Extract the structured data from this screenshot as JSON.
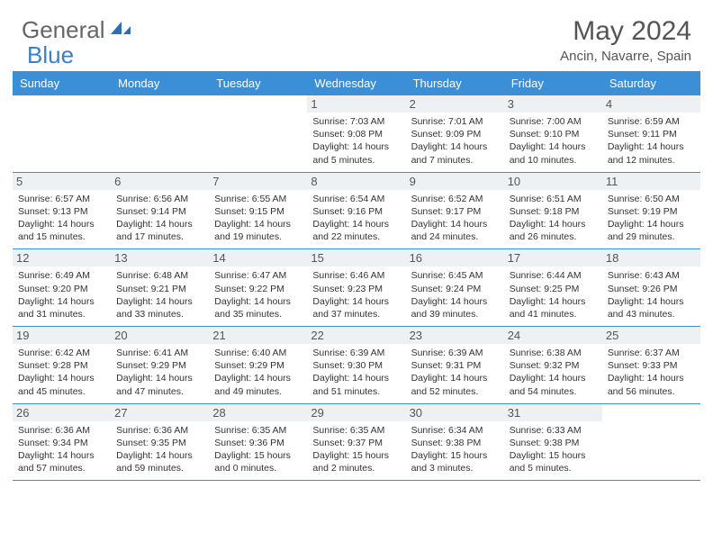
{
  "logo": {
    "t1": "General",
    "t2": "Blue"
  },
  "title": "May 2024",
  "location": "Ancin, Navarre, Spain",
  "colors": {
    "header": "#3b8fd6",
    "line": "#3b8fd6",
    "daynum_bg": "#eef1f3"
  },
  "daynames": [
    "Sunday",
    "Monday",
    "Tuesday",
    "Wednesday",
    "Thursday",
    "Friday",
    "Saturday"
  ],
  "weeks": [
    [
      null,
      null,
      null,
      {
        "n": "1",
        "r": "7:03 AM",
        "s": "9:08 PM",
        "d": "14 hours and 5 minutes."
      },
      {
        "n": "2",
        "r": "7:01 AM",
        "s": "9:09 PM",
        "d": "14 hours and 7 minutes."
      },
      {
        "n": "3",
        "r": "7:00 AM",
        "s": "9:10 PM",
        "d": "14 hours and 10 minutes."
      },
      {
        "n": "4",
        "r": "6:59 AM",
        "s": "9:11 PM",
        "d": "14 hours and 12 minutes."
      }
    ],
    [
      {
        "n": "5",
        "r": "6:57 AM",
        "s": "9:13 PM",
        "d": "14 hours and 15 minutes."
      },
      {
        "n": "6",
        "r": "6:56 AM",
        "s": "9:14 PM",
        "d": "14 hours and 17 minutes."
      },
      {
        "n": "7",
        "r": "6:55 AM",
        "s": "9:15 PM",
        "d": "14 hours and 19 minutes."
      },
      {
        "n": "8",
        "r": "6:54 AM",
        "s": "9:16 PM",
        "d": "14 hours and 22 minutes."
      },
      {
        "n": "9",
        "r": "6:52 AM",
        "s": "9:17 PM",
        "d": "14 hours and 24 minutes."
      },
      {
        "n": "10",
        "r": "6:51 AM",
        "s": "9:18 PM",
        "d": "14 hours and 26 minutes."
      },
      {
        "n": "11",
        "r": "6:50 AM",
        "s": "9:19 PM",
        "d": "14 hours and 29 minutes."
      }
    ],
    [
      {
        "n": "12",
        "r": "6:49 AM",
        "s": "9:20 PM",
        "d": "14 hours and 31 minutes."
      },
      {
        "n": "13",
        "r": "6:48 AM",
        "s": "9:21 PM",
        "d": "14 hours and 33 minutes."
      },
      {
        "n": "14",
        "r": "6:47 AM",
        "s": "9:22 PM",
        "d": "14 hours and 35 minutes."
      },
      {
        "n": "15",
        "r": "6:46 AM",
        "s": "9:23 PM",
        "d": "14 hours and 37 minutes."
      },
      {
        "n": "16",
        "r": "6:45 AM",
        "s": "9:24 PM",
        "d": "14 hours and 39 minutes."
      },
      {
        "n": "17",
        "r": "6:44 AM",
        "s": "9:25 PM",
        "d": "14 hours and 41 minutes."
      },
      {
        "n": "18",
        "r": "6:43 AM",
        "s": "9:26 PM",
        "d": "14 hours and 43 minutes."
      }
    ],
    [
      {
        "n": "19",
        "r": "6:42 AM",
        "s": "9:28 PM",
        "d": "14 hours and 45 minutes."
      },
      {
        "n": "20",
        "r": "6:41 AM",
        "s": "9:29 PM",
        "d": "14 hours and 47 minutes."
      },
      {
        "n": "21",
        "r": "6:40 AM",
        "s": "9:29 PM",
        "d": "14 hours and 49 minutes."
      },
      {
        "n": "22",
        "r": "6:39 AM",
        "s": "9:30 PM",
        "d": "14 hours and 51 minutes."
      },
      {
        "n": "23",
        "r": "6:39 AM",
        "s": "9:31 PM",
        "d": "14 hours and 52 minutes."
      },
      {
        "n": "24",
        "r": "6:38 AM",
        "s": "9:32 PM",
        "d": "14 hours and 54 minutes."
      },
      {
        "n": "25",
        "r": "6:37 AM",
        "s": "9:33 PM",
        "d": "14 hours and 56 minutes."
      }
    ],
    [
      {
        "n": "26",
        "r": "6:36 AM",
        "s": "9:34 PM",
        "d": "14 hours and 57 minutes."
      },
      {
        "n": "27",
        "r": "6:36 AM",
        "s": "9:35 PM",
        "d": "14 hours and 59 minutes."
      },
      {
        "n": "28",
        "r": "6:35 AM",
        "s": "9:36 PM",
        "d": "15 hours and 0 minutes."
      },
      {
        "n": "29",
        "r": "6:35 AM",
        "s": "9:37 PM",
        "d": "15 hours and 2 minutes."
      },
      {
        "n": "30",
        "r": "6:34 AM",
        "s": "9:38 PM",
        "d": "15 hours and 3 minutes."
      },
      {
        "n": "31",
        "r": "6:33 AM",
        "s": "9:38 PM",
        "d": "15 hours and 5 minutes."
      },
      null
    ]
  ],
  "labels": {
    "sunrise": "Sunrise:",
    "sunset": "Sunset:",
    "daylight": "Daylight:"
  }
}
